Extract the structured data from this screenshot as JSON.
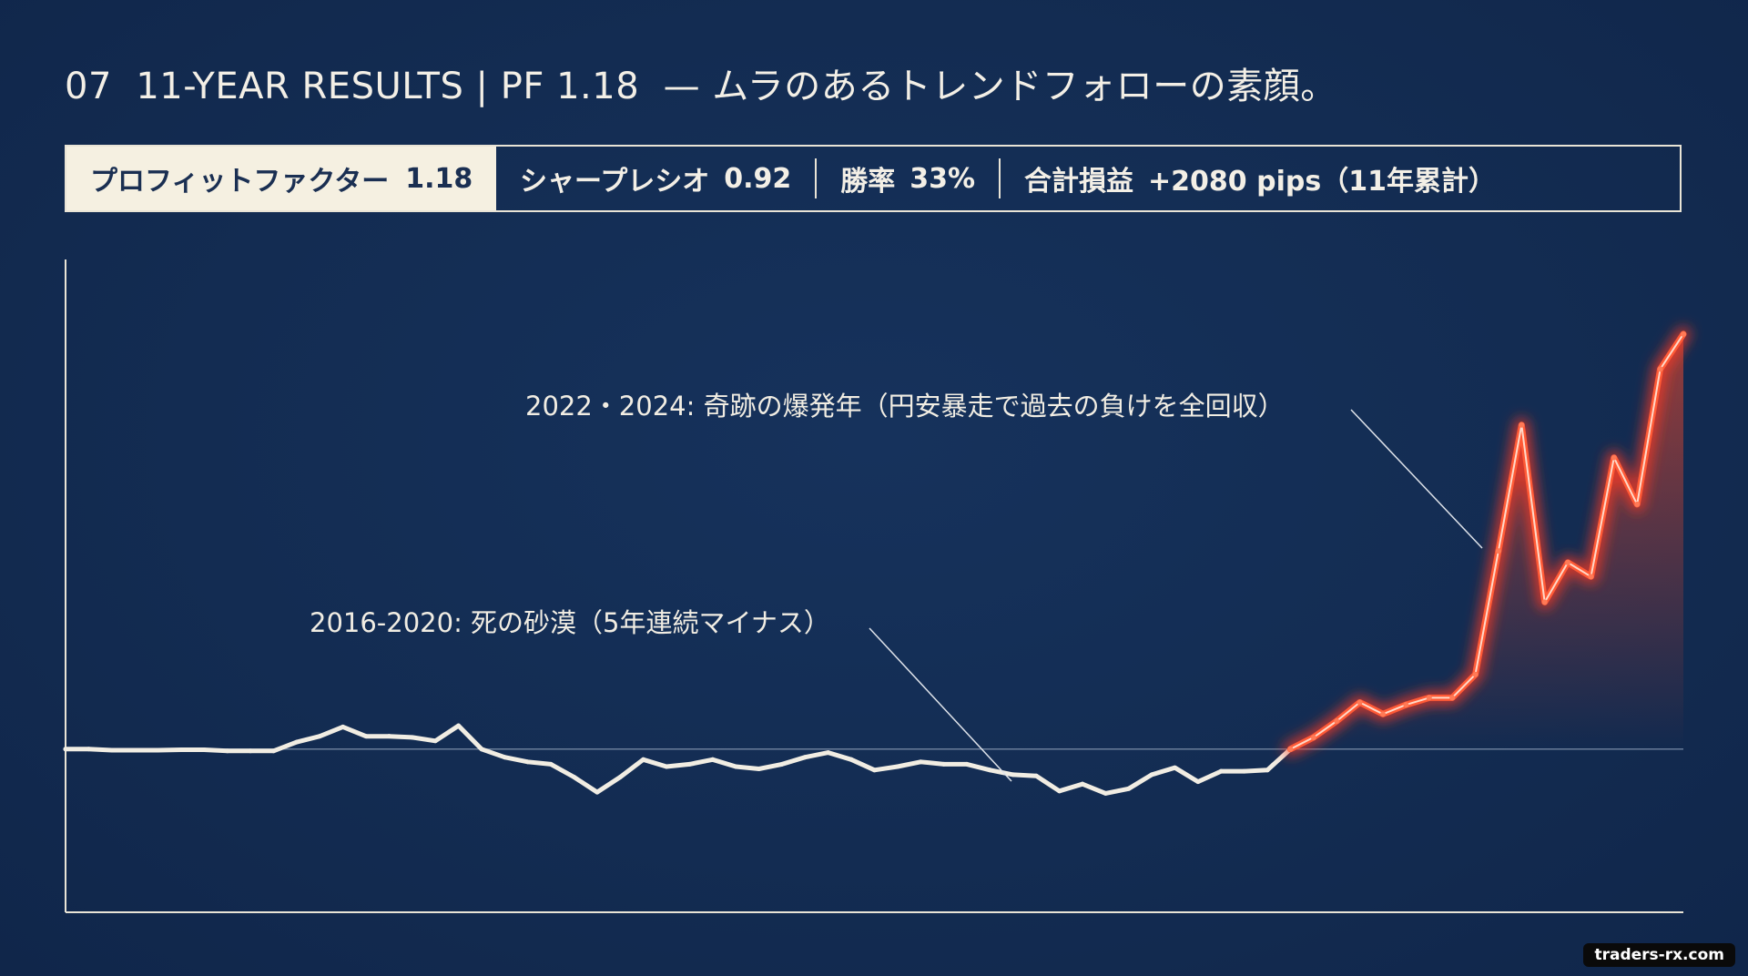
{
  "title": {
    "number": "07",
    "heading": "11-YEAR RESULTS",
    "pf": "PF 1.18",
    "tagline": "— ムラのあるトレンドフォローの素顔。"
  },
  "stats": {
    "profit_factor_label": "プロフィットファクター",
    "profit_factor_value": "1.18",
    "sharpe_label": "シャープレシオ",
    "sharpe_value": "0.92",
    "winrate_label": "勝率",
    "winrate_value": "33%",
    "total_label": "合計損益",
    "total_value": "+2080 pips（11年累計）"
  },
  "annotations": {
    "desert": "2016-2020: 死の砂漠（5年連続マイナス）",
    "boom": "2022・2024: 奇跡の爆発年（円安暴走で過去の負けを全回収）"
  },
  "watermark": "traders-rx.com",
  "colors": {
    "background": "#132c52",
    "flat_line": "#f1ede3",
    "boom_line": "#ff5a36",
    "boom_glow": "#ff3b1f",
    "axis": "#e9e4d6"
  },
  "chart_data": {
    "type": "line",
    "title": "",
    "xlabel": "",
    "ylabel": "",
    "grid": false,
    "baseline": 0,
    "ylim": [
      -700,
      2100
    ],
    "series": [
      {
        "values": [
          0,
          0,
          -5,
          -5,
          -5,
          -3,
          -3,
          -8,
          -8,
          -8,
          30,
          55,
          95,
          55,
          55,
          50,
          35,
          100,
          0,
          -35,
          -55,
          -65,
          -120,
          -185,
          -120,
          -45,
          -75,
          -65,
          -45,
          -75,
          -85,
          -65,
          -35,
          -15,
          -45,
          -90,
          -75,
          -55,
          -65,
          -65,
          -90,
          -110,
          -115,
          -180,
          -150,
          -190,
          -170,
          -110,
          -80,
          -140,
          -95,
          -95,
          -90,
          0
        ],
        "style": "flat"
      },
      {
        "values": [
          0,
          50,
          120,
          200,
          150,
          190,
          220,
          220,
          320,
          850,
          1390,
          630,
          800,
          740,
          1250,
          1050,
          1630,
          1780
        ],
        "style": "boom"
      }
    ]
  }
}
